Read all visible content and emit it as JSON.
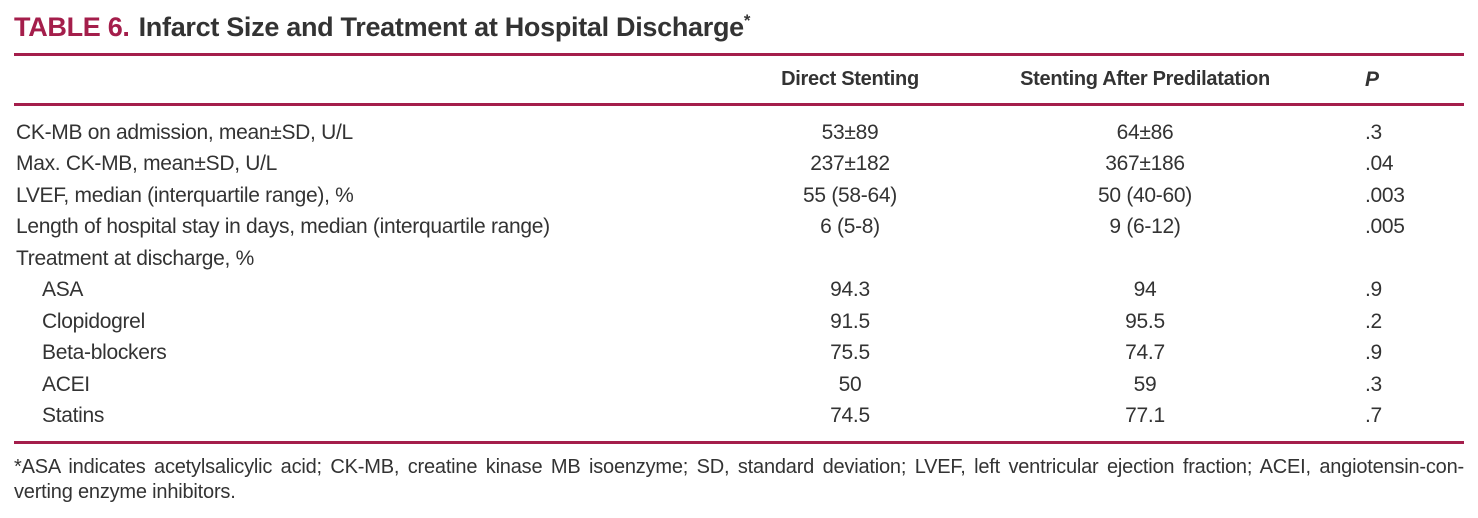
{
  "title": {
    "tag": "TABLE 6.",
    "text": "Infarct Size and Treatment at Hospital Discharge",
    "marker": "*"
  },
  "colors": {
    "accent": "#A41E4B",
    "text": "#333333"
  },
  "table": {
    "columns": {
      "label": "",
      "direct": "Direct Stenting",
      "predilatation": "Stenting After Predilatation",
      "p": "P"
    },
    "rows": [
      {
        "label": "CK-MB on admission, mean±SD, U/L",
        "direct": "53±89",
        "predilatation": "64±86",
        "p": ".3"
      },
      {
        "label": "Max. CK-MB, mean±SD, U/L",
        "direct": "237±182",
        "predilatation": "367±186",
        "p": ".04"
      },
      {
        "label": "LVEF, median (interquartile range), %",
        "direct": "55 (58-64)",
        "predilatation": "50 (40-60)",
        "p": ".003"
      },
      {
        "label": "Length of hospital stay in days, median (interquartile range)",
        "direct": "6 (5-8)",
        "predilatation": "9 (6-12)",
        "p": ".005"
      },
      {
        "label": "Treatment at discharge, %",
        "direct": "",
        "predilatation": "",
        "p": ""
      },
      {
        "label": "ASA",
        "direct": "94.3",
        "predilatation": "94",
        "p": ".9"
      },
      {
        "label": "Clopidogrel",
        "direct": "91.5",
        "predilatation": "95.5",
        "p": ".2"
      },
      {
        "label": "Beta-blockers",
        "direct": "75.5",
        "predilatation": "74.7",
        "p": ".9"
      },
      {
        "label": "ACEI",
        "direct": "50",
        "predilatation": "59",
        "p": ".3"
      },
      {
        "label": "Statins",
        "direct": "74.5",
        "predilatation": "77.1",
        "p": ".7"
      }
    ]
  },
  "footnote": {
    "line1": "*ASA indicates acetylsalicylic acid; CK-MB, creatine kinase MB isoenzyme; SD, standard deviation; LVEF, left ventricular ejection fraction; ACEI, angiotensin-con-",
    "line2": "verting enzyme inhibitors."
  }
}
